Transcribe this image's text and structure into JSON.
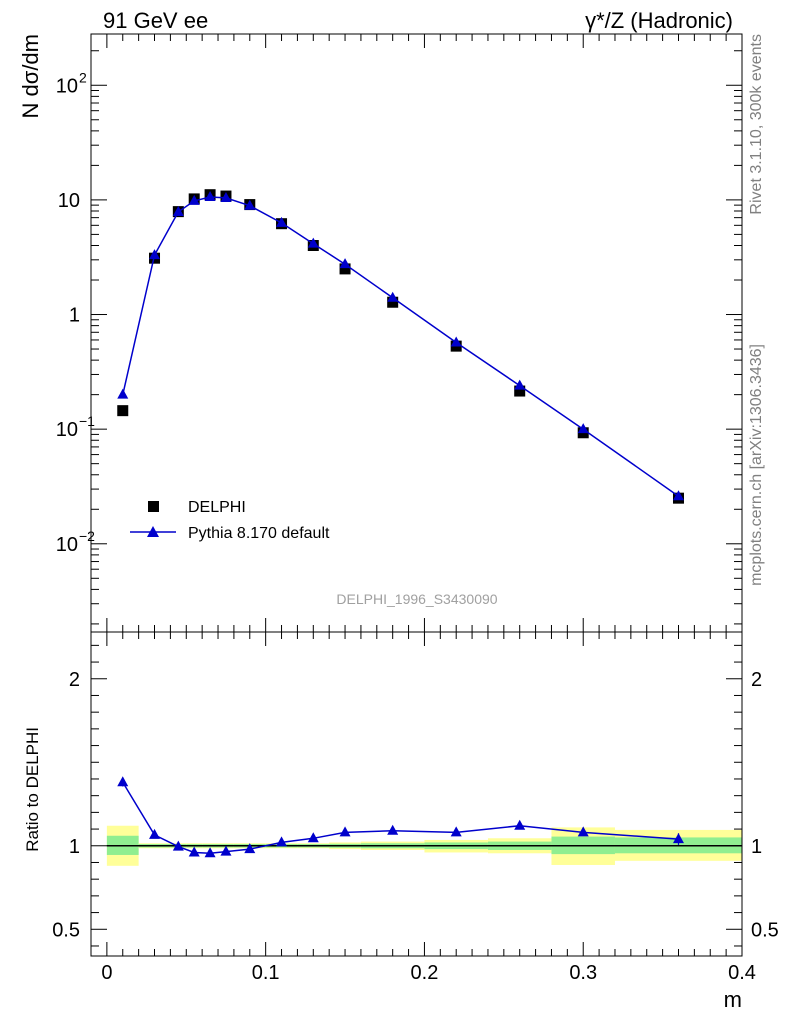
{
  "header": {
    "left": "91 GeV ee",
    "right": "γ*/Z (Hadronic)"
  },
  "side_labels": {
    "rivet": "Rivet 3.1.10,  300k events",
    "mcplots": "mcplots.cern.ch [arXiv:1306.3436]"
  },
  "watermark": "DELPHI_1996_S3430090",
  "colors": {
    "mc": "#0000cc",
    "band_inner": "#90ee90",
    "band_outer": "#ffff99",
    "data": "#000000"
  },
  "chart_data": [
    {
      "type": "scatter",
      "panel": "main",
      "ylabel": "N dσ/dm",
      "yscale": "log",
      "xlim": [
        -0.01,
        0.4
      ],
      "ylim": [
        0.0017,
        280
      ],
      "yticks": [
        {
          "value": 0.01,
          "label": "10",
          "exp": "−2"
        },
        {
          "value": 0.1,
          "label": "10",
          "exp": "−1"
        },
        {
          "value": 1,
          "label": "1",
          "exp": ""
        },
        {
          "value": 10,
          "label": "10",
          "exp": ""
        },
        {
          "value": 100,
          "label": "10",
          "exp": "2"
        }
      ],
      "legend_position": "bottom-left",
      "series": [
        {
          "name": "DELPHI",
          "marker": "square",
          "x": [
            0.01,
            0.03,
            0.045,
            0.055,
            0.065,
            0.075,
            0.09,
            0.11,
            0.13,
            0.15,
            0.18,
            0.22,
            0.26,
            0.3,
            0.36
          ],
          "y": [
            0.145,
            3.1,
            7.9,
            10.2,
            11.1,
            10.8,
            9.1,
            6.2,
            4.0,
            2.5,
            1.28,
            0.53,
            0.215,
            0.093,
            0.025
          ]
        },
        {
          "name": "Pythia 8.170 default",
          "marker": "triangle",
          "x": [
            0.01,
            0.03,
            0.045,
            0.055,
            0.065,
            0.075,
            0.09,
            0.11,
            0.13,
            0.15,
            0.18,
            0.22,
            0.26,
            0.3,
            0.36
          ],
          "y": [
            0.2,
            3.3,
            7.85,
            9.8,
            10.6,
            10.4,
            8.9,
            6.3,
            4.15,
            2.75,
            1.4,
            0.57,
            0.24,
            0.1,
            0.026
          ]
        }
      ]
    },
    {
      "type": "line",
      "panel": "ratio",
      "xlabel": "m",
      "ylabel": "Ratio to DELPHI",
      "xlim": [
        -0.01,
        0.4
      ],
      "ylim": [
        0.34,
        2.28
      ],
      "xticks": [
        0,
        0.1,
        0.2,
        0.3,
        0.4
      ],
      "xticklabels": [
        "0",
        "0.1",
        "0.2",
        "0.3",
        "0.4"
      ],
      "yticks": [
        0.5,
        1,
        2
      ],
      "yticklabels": [
        "0.5",
        "1",
        "2"
      ],
      "bands": [
        {
          "x0": 0.0,
          "x1": 0.02,
          "inner": [
            0.945,
            1.06
          ],
          "outer": [
            0.88,
            1.12
          ]
        },
        {
          "x0": 0.02,
          "x1": 0.04,
          "inner": [
            0.99,
            1.01
          ],
          "outer": [
            0.985,
            1.015
          ]
        },
        {
          "x0": 0.04,
          "x1": 0.05,
          "inner": [
            0.99,
            1.01
          ],
          "outer": [
            0.985,
            1.015
          ]
        },
        {
          "x0": 0.05,
          "x1": 0.06,
          "inner": [
            0.99,
            1.01
          ],
          "outer": [
            0.985,
            1.015
          ]
        },
        {
          "x0": 0.06,
          "x1": 0.07,
          "inner": [
            0.99,
            1.01
          ],
          "outer": [
            0.985,
            1.015
          ]
        },
        {
          "x0": 0.07,
          "x1": 0.08,
          "inner": [
            0.99,
            1.01
          ],
          "outer": [
            0.985,
            1.015
          ]
        },
        {
          "x0": 0.08,
          "x1": 0.1,
          "inner": [
            0.99,
            1.01
          ],
          "outer": [
            0.985,
            1.015
          ]
        },
        {
          "x0": 0.1,
          "x1": 0.12,
          "inner": [
            0.99,
            1.01
          ],
          "outer": [
            0.985,
            1.015
          ]
        },
        {
          "x0": 0.12,
          "x1": 0.14,
          "inner": [
            0.99,
            1.01
          ],
          "outer": [
            0.985,
            1.015
          ]
        },
        {
          "x0": 0.14,
          "x1": 0.16,
          "inner": [
            0.988,
            1.012
          ],
          "outer": [
            0.98,
            1.02
          ]
        },
        {
          "x0": 0.16,
          "x1": 0.2,
          "inner": [
            0.985,
            1.015
          ],
          "outer": [
            0.975,
            1.025
          ]
        },
        {
          "x0": 0.2,
          "x1": 0.24,
          "inner": [
            0.98,
            1.02
          ],
          "outer": [
            0.96,
            1.035
          ]
        },
        {
          "x0": 0.24,
          "x1": 0.28,
          "inner": [
            0.975,
            1.025
          ],
          "outer": [
            0.955,
            1.045
          ]
        },
        {
          "x0": 0.28,
          "x1": 0.32,
          "inner": [
            0.95,
            1.055
          ],
          "outer": [
            0.885,
            1.11
          ]
        },
        {
          "x0": 0.32,
          "x1": 0.4,
          "inner": [
            0.955,
            1.05
          ],
          "outer": [
            0.91,
            1.095
          ]
        }
      ],
      "series": [
        {
          "name": "Pythia 8.170 default",
          "x": [
            0.01,
            0.03,
            0.045,
            0.055,
            0.065,
            0.075,
            0.09,
            0.11,
            0.13,
            0.15,
            0.18,
            0.22,
            0.26,
            0.3,
            0.36
          ],
          "y": [
            1.38,
            1.065,
            0.995,
            0.96,
            0.955,
            0.965,
            0.98,
            1.02,
            1.045,
            1.08,
            1.09,
            1.08,
            1.12,
            1.08,
            1.04
          ],
          "err": [
            0.025,
            0.01,
            0.008,
            0.008,
            0.008,
            0.008,
            0.008,
            0.008,
            0.01,
            0.01,
            0.01,
            0.012,
            0.015,
            0.02,
            0.035
          ]
        }
      ]
    }
  ]
}
